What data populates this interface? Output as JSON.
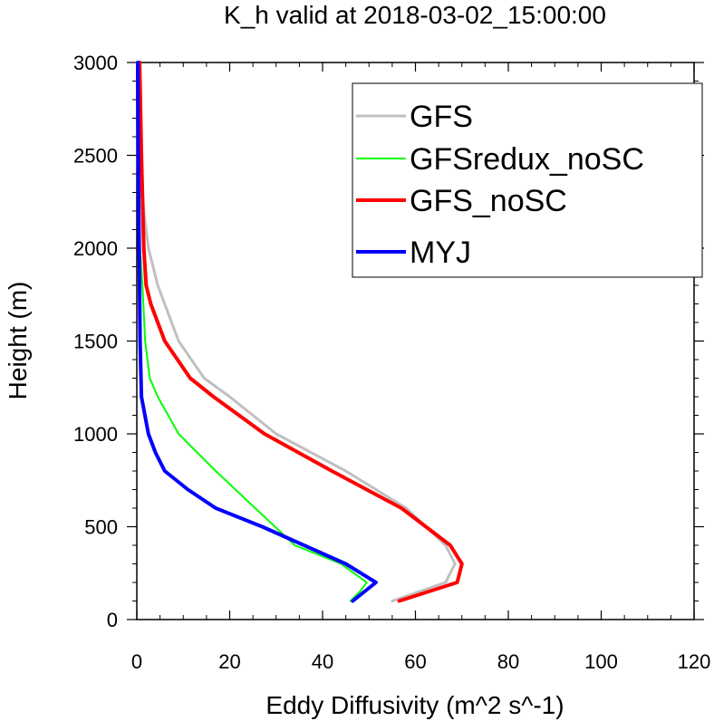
{
  "chart_data": {
    "type": "line",
    "title": "K_h valid at 2018-03-02_15:00:00",
    "xlabel": "Eddy Diffusivity (m^2 s^-1)",
    "ylabel": "Height (m)",
    "xlim": [
      0,
      120
    ],
    "ylim": [
      0,
      3000
    ],
    "xticks": [
      0,
      20,
      40,
      60,
      80,
      100,
      120
    ],
    "yticks": [
      0,
      500,
      1000,
      1500,
      2000,
      2500,
      3000
    ],
    "x_tick_labels": [
      "0",
      "20",
      "40",
      "60",
      "80",
      "100",
      "120"
    ],
    "y_tick_labels": [
      "0",
      "500",
      "1000",
      "1500",
      "2000",
      "2500",
      "3000"
    ],
    "grid": false,
    "legend_position": "top-right",
    "series": [
      {
        "name": "GFS",
        "color": "#c0c0c0",
        "x": [
          55,
          66.5,
          68.5,
          66.5,
          58,
          45,
          30,
          20,
          14.5,
          9,
          7.5,
          4.5,
          2.5,
          1.5,
          0.8,
          0.6,
          0.5
        ],
        "y": [
          100,
          200,
          300,
          400,
          600,
          800,
          1000,
          1200,
          1300,
          1500,
          1600,
          1800,
          2000,
          2200,
          2500,
          2800,
          3000
        ]
      },
      {
        "name": "GFSredux_noSC",
        "color": "#00ff00",
        "x": [
          46,
          48,
          49.5,
          44,
          34,
          17,
          9,
          4.5,
          2.8,
          1.8,
          1.2,
          0.7,
          0.4,
          0.2,
          0.1
        ],
        "y": [
          100,
          150,
          200,
          300,
          400,
          800,
          1000,
          1200,
          1300,
          1500,
          1800,
          2000,
          2200,
          2500,
          3000
        ]
      },
      {
        "name": "GFS_noSC",
        "color": "#ff0000",
        "x": [
          56.5,
          69,
          70,
          67.5,
          57,
          42,
          27.5,
          16.5,
          11.5,
          6,
          4.5,
          3,
          2,
          1.5,
          1,
          0.6
        ],
        "y": [
          100,
          200,
          300,
          400,
          600,
          800,
          1000,
          1200,
          1300,
          1500,
          1600,
          1700,
          1800,
          2000,
          2500,
          3000
        ]
      },
      {
        "name": "MYJ",
        "color": "#0000ff",
        "x": [
          46.5,
          51.5,
          45,
          27,
          17,
          11,
          6,
          4,
          2.5,
          1,
          0.7,
          0.5,
          0.3,
          0.2
        ],
        "y": [
          100,
          200,
          300,
          500,
          600,
          700,
          800,
          900,
          1000,
          1200,
          1500,
          2000,
          2500,
          3000
        ]
      }
    ]
  }
}
